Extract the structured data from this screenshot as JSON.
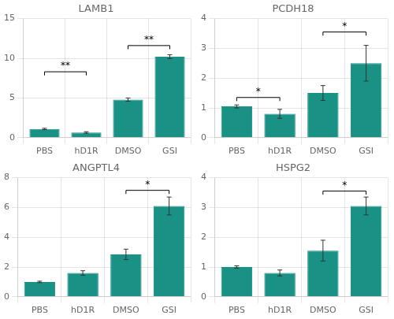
{
  "chart_data": [
    {
      "type": "bar",
      "title": "LAMB1",
      "categories": [
        "PBS",
        "hD1R",
        "DMSO",
        "GSI"
      ],
      "values": [
        1.1,
        0.65,
        4.8,
        10.2
      ],
      "errors": [
        0.08,
        0.1,
        0.2,
        0.25
      ],
      "color": "#1a9185",
      "ylim": [
        0,
        15
      ],
      "yticks": [
        0,
        5,
        10,
        15
      ],
      "grid": true,
      "brackets": [
        {
          "from": "PBS",
          "to": "hD1R",
          "y": 8.3,
          "label": "**"
        },
        {
          "from": "DMSO",
          "to": "GSI",
          "y": 11.6,
          "label": "**"
        }
      ]
    },
    {
      "type": "bar",
      "title": "PCDH18",
      "categories": [
        "PBS",
        "hD1R",
        "DMSO",
        "GSI"
      ],
      "values": [
        1.05,
        0.8,
        1.5,
        2.5
      ],
      "errors": [
        0.05,
        0.15,
        0.25,
        0.6
      ],
      "color": "#1a9185",
      "ylim": [
        0,
        4
      ],
      "yticks": [
        0,
        1,
        2,
        3,
        4
      ],
      "grid": true,
      "brackets": [
        {
          "from": "PBS",
          "to": "hD1R",
          "y": 1.35,
          "label": "*"
        },
        {
          "from": "DMSO",
          "to": "GSI",
          "y": 3.55,
          "label": "*"
        }
      ]
    },
    {
      "type": "bar",
      "title": "ANGPTL4",
      "categories": [
        "PBS",
        "hD1R",
        "DMSO",
        "GSI"
      ],
      "values": [
        1.0,
        1.6,
        2.85,
        6.1
      ],
      "errors": [
        0.05,
        0.15,
        0.35,
        0.6
      ],
      "color": "#1a9185",
      "ylim": [
        0,
        8
      ],
      "yticks": [
        0,
        2,
        4,
        6,
        8
      ],
      "grid": true,
      "brackets": [
        {
          "from": "DMSO",
          "to": "GSI",
          "y": 7.15,
          "label": "*"
        }
      ]
    },
    {
      "type": "bar",
      "title": "HSPG2",
      "categories": [
        "PBS",
        "hD1R",
        "DMSO",
        "GSI"
      ],
      "values": [
        1.0,
        0.8,
        1.55,
        3.05
      ],
      "errors": [
        0.04,
        0.1,
        0.35,
        0.3
      ],
      "color": "#1a9185",
      "ylim": [
        0,
        4
      ],
      "yticks": [
        0,
        1,
        2,
        3,
        4
      ],
      "grid": true,
      "brackets": [
        {
          "from": "DMSO",
          "to": "GSI",
          "y": 3.55,
          "label": "*"
        }
      ]
    }
  ]
}
